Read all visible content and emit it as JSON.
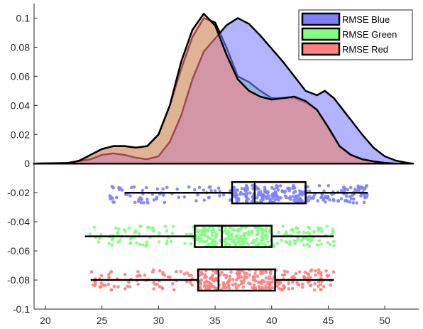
{
  "chart_data": {
    "type": "raincloud",
    "xlim": [
      19,
      53
    ],
    "ylim": [
      -0.1,
      0.11
    ],
    "x_ticks": [
      20,
      25,
      30,
      35,
      40,
      45,
      50
    ],
    "y_ticks": [
      -0.1,
      -0.08,
      -0.06,
      -0.04,
      -0.02,
      0,
      0.02,
      0.04,
      0.06,
      0.08,
      0.1
    ],
    "x_tick_labels": [
      "20",
      "25",
      "30",
      "35",
      "40",
      "45",
      "50"
    ],
    "y_tick_labels": [
      "-0.1",
      "-0.08",
      "-0.06",
      "-0.04",
      "-0.02",
      "0",
      "0.02",
      "0.04",
      "0.06",
      "0.08",
      "0.1"
    ],
    "legend": {
      "placement": "top-right"
    },
    "series": [
      {
        "name": "RMSE Blue",
        "color": "#8080ff",
        "density": {
          "x": [
            19,
            22,
            24,
            25,
            26,
            27,
            28,
            29,
            30,
            31,
            32,
            33,
            34,
            35,
            36,
            37,
            38,
            39,
            40,
            41,
            42,
            43,
            44,
            44.7,
            45.5,
            46,
            47,
            48,
            49,
            50,
            51,
            52,
            52.5
          ],
          "y": [
            0,
            0.0005,
            0.003,
            0.006,
            0.007,
            0.006,
            0.004,
            0.003,
            0.005,
            0.015,
            0.033,
            0.058,
            0.077,
            0.086,
            0.095,
            0.1,
            0.096,
            0.088,
            0.079,
            0.07,
            0.06,
            0.05,
            0.047,
            0.05,
            0.045,
            0.04,
            0.03,
            0.02,
            0.011,
            0.005,
            0.002,
            0.0005,
            0
          ]
        },
        "box": {
          "y": -0.02,
          "whisker_low": 27,
          "q1": 36.5,
          "median": 38.5,
          "q3": 43,
          "whisker_high": 48.5
        },
        "jitter": {
          "x_range": [
            25.5,
            48.5
          ],
          "y_range": [
            -0.015,
            -0.027
          ]
        }
      },
      {
        "name": "RMSE Green",
        "color": "#80ff80",
        "density": {
          "x": [
            19,
            22,
            23,
            24,
            25,
            26,
            27,
            28,
            29,
            30,
            31,
            32,
            33,
            34,
            35,
            36,
            37,
            38,
            39,
            40,
            41,
            42,
            43,
            44,
            45,
            46,
            47,
            48,
            49,
            50,
            51
          ],
          "y": [
            0,
            0.0003,
            0.002,
            0.006,
            0.01,
            0.012,
            0.012,
            0.011,
            0.012,
            0.02,
            0.04,
            0.065,
            0.087,
            0.1,
            0.097,
            0.08,
            0.06,
            0.056,
            0.05,
            0.045,
            0.045,
            0.045,
            0.042,
            0.037,
            0.025,
            0.012,
            0.006,
            0.003,
            0.0015,
            0.0005,
            0
          ]
        },
        "box": {
          "y": -0.05,
          "whisker_low": 23.5,
          "q1": 33.2,
          "median": 35.6,
          "q3": 40,
          "whisker_high": 45.5
        },
        "jitter": {
          "x_range": [
            23.5,
            45.5
          ],
          "y_range": [
            -0.043,
            -0.057
          ]
        }
      },
      {
        "name": "RMSE Red",
        "color": "#ff8080",
        "density": {
          "x": [
            19,
            22,
            23,
            24,
            25,
            26,
            27,
            28,
            29,
            30,
            31,
            32,
            33,
            34,
            35,
            36,
            37,
            38,
            39,
            40,
            41,
            42,
            43,
            44,
            45,
            46,
            47,
            48,
            49,
            50,
            51
          ],
          "y": [
            0,
            0.0003,
            0.002,
            0.006,
            0.01,
            0.012,
            0.012,
            0.011,
            0.012,
            0.02,
            0.04,
            0.07,
            0.092,
            0.103,
            0.095,
            0.075,
            0.058,
            0.05,
            0.046,
            0.044,
            0.045,
            0.046,
            0.043,
            0.037,
            0.025,
            0.012,
            0.006,
            0.003,
            0.0015,
            0.0005,
            0
          ]
        },
        "box": {
          "y": -0.08,
          "whisker_low": 24,
          "q1": 33.5,
          "median": 35.3,
          "q3": 40.3,
          "whisker_high": 45.5
        },
        "jitter": {
          "x_range": [
            24,
            45.5
          ],
          "y_range": [
            -0.073,
            -0.087
          ]
        }
      }
    ]
  }
}
